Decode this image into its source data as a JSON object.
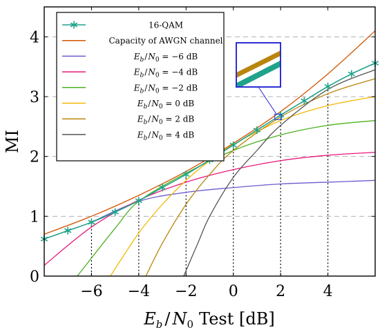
{
  "chart_data": {
    "type": "line",
    "xlabel": "E_b / N_0 Test [dB]",
    "xlabel_parts": {
      "sym": "E",
      "sub": "b",
      "mid": "/",
      "sym2": "N",
      "sub2": "0",
      "tail": "Test [dB]"
    },
    "ylabel": "MI",
    "xlim": [
      -8,
      6
    ],
    "ylim": [
      0,
      4.5
    ],
    "x_ticks": [
      {
        "value": -6,
        "label": "−6"
      },
      {
        "value": -4,
        "label": "−4"
      },
      {
        "value": -2,
        "label": "−2"
      },
      {
        "value": 0,
        "label": "0"
      },
      {
        "value": 2,
        "label": "2"
      },
      {
        "value": 4,
        "label": "4"
      }
    ],
    "y_ticks": [
      {
        "value": 0,
        "label": "0"
      },
      {
        "value": 1,
        "label": "1"
      },
      {
        "value": 2,
        "label": "2"
      },
      {
        "value": 3,
        "label": "3"
      },
      {
        "value": 4,
        "label": "4"
      }
    ],
    "grid": "horizontal dashed",
    "legend_position": "top-left",
    "series": [
      {
        "name": "16-QAM",
        "color": "#1fa38a",
        "marker": "star",
        "x": [
          -8,
          -7,
          -6,
          -5,
          -4,
          -3,
          -2,
          -1,
          0,
          1,
          2,
          3,
          4,
          5,
          6
        ],
        "y": [
          0.62,
          0.76,
          0.9,
          1.07,
          1.26,
          1.48,
          1.7,
          1.94,
          2.19,
          2.44,
          2.69,
          2.93,
          3.17,
          3.38,
          3.56
        ]
      },
      {
        "name": "Capacity of AWGN channel",
        "color": "#d35400",
        "x": [
          -8,
          -6,
          -4,
          -2,
          0,
          2,
          4,
          6
        ],
        "y": [
          0.7,
          1.0,
          1.35,
          1.75,
          2.22,
          2.75,
          3.38,
          4.1
        ]
      },
      {
        "name": "E_b/N_0 = −6 dB",
        "legend": {
          "pre": "",
          "post": " = −6 dB"
        },
        "color": "#6a5acd",
        "x": [
          -6,
          -4,
          -2,
          0,
          2,
          4,
          6
        ],
        "y": [
          0.9,
          1.25,
          1.4,
          1.48,
          1.54,
          1.57,
          1.6
        ]
      },
      {
        "name": "E_b/N_0 = −4 dB",
        "legend": {
          "pre": "",
          "post": " = −4 dB"
        },
        "color": "#e8177a",
        "x": [
          -8,
          -6,
          -4,
          -2,
          0,
          2,
          4,
          6
        ],
        "y": [
          0.18,
          0.82,
          1.27,
          1.57,
          1.78,
          1.93,
          2.02,
          2.07
        ]
      },
      {
        "name": "E_b/N_0 = −2 dB",
        "legend": {
          "pre": "",
          "post": " = −2 dB"
        },
        "color": "#4daf1f",
        "x": [
          -6.6,
          -5,
          -4,
          -2,
          0,
          2,
          4,
          6
        ],
        "y": [
          0.0,
          0.8,
          1.25,
          1.72,
          2.1,
          2.36,
          2.52,
          2.6
        ]
      },
      {
        "name": "E_b/N_0 = 0 dB",
        "legend": {
          "pre": "",
          "post": " = 0 dB"
        },
        "color": "#f1b800",
        "x": [
          -5.2,
          -4,
          -3,
          -2,
          -1,
          0,
          2,
          4,
          6
        ],
        "y": [
          0.0,
          0.72,
          1.2,
          1.6,
          1.93,
          2.2,
          2.6,
          2.85,
          3.0
        ]
      },
      {
        "name": "E_b/N_0 = 2 dB",
        "legend": {
          "pre": "",
          "post": " = 2 dB"
        },
        "color": "#b8860b",
        "x": [
          -3.7,
          -3,
          -2,
          -1,
          0,
          2,
          4,
          6
        ],
        "y": [
          0.0,
          0.55,
          1.2,
          1.7,
          2.1,
          2.66,
          3.05,
          3.3
        ]
      },
      {
        "name": "E_b/N_0 = 4 dB",
        "legend": {
          "pre": "",
          "post": " = 4 dB"
        },
        "color": "#555555",
        "x": [
          -2.1,
          -1.5,
          -1,
          0,
          1,
          2,
          4,
          6
        ],
        "y": [
          0.0,
          0.55,
          1.0,
          1.65,
          2.1,
          2.52,
          3.12,
          3.45
        ]
      }
    ],
    "markers_dropdown_x": [
      -6,
      -4,
      -2,
      0,
      2,
      4
    ],
    "inset": {
      "zoom_center": {
        "x": 1.9,
        "y": 2.65
      }
    }
  }
}
